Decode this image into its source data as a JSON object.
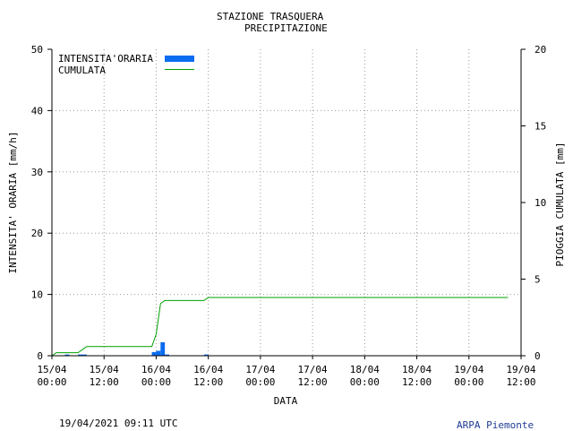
{
  "chart_data": {
    "type": "bar+line",
    "title_line1": "STAZIONE TRASQUERA",
    "title_line2": "PRECIPITAZIONE",
    "xlabel": "DATA",
    "ylabel_left": "INTENSITA' ORARIA [mm/h]",
    "ylabel_right": "PIOGGIA CUMULATA [mm]",
    "ylim_left": [
      0,
      50
    ],
    "ylim_right": [
      0,
      20
    ],
    "yticks_left": [
      "0",
      "10",
      "20",
      "30",
      "40",
      "50"
    ],
    "yticks_right": [
      "0",
      "5",
      "10",
      "15",
      "20"
    ],
    "x_ticks": [
      {
        "date": "15/04",
        "time": "00:00"
      },
      {
        "date": "15/04",
        "time": "12:00"
      },
      {
        "date": "16/04",
        "time": "00:00"
      },
      {
        "date": "16/04",
        "time": "12:00"
      },
      {
        "date": "17/04",
        "time": "00:00"
      },
      {
        "date": "17/04",
        "time": "12:00"
      },
      {
        "date": "18/04",
        "time": "00:00"
      },
      {
        "date": "18/04",
        "time": "12:00"
      },
      {
        "date": "19/04",
        "time": "00:00"
      },
      {
        "date": "19/04",
        "time": "12:00"
      }
    ],
    "grid": true,
    "legend": "top-left",
    "series": [
      {
        "name": "INTENSITA'ORARIA",
        "kind": "bar",
        "color": "#0a6cf0",
        "points": [
          {
            "x": "15/04 03:00",
            "y": 0.2
          },
          {
            "x": "15/04 06:00",
            "y": 0.2
          },
          {
            "x": "15/04 07:00",
            "y": 0.2
          },
          {
            "x": "15/04 23:00",
            "y": 0.6
          },
          {
            "x": "16/04 00:00",
            "y": 0.8
          },
          {
            "x": "16/04 01:00",
            "y": 2.2
          },
          {
            "x": "16/04 02:00",
            "y": 0.2
          },
          {
            "x": "16/04 11:00",
            "y": 0.2
          }
        ]
      },
      {
        "name": "CUMULATA",
        "kind": "line",
        "color": "#00a000",
        "points": [
          {
            "x": "15/04 00:00",
            "y": 0.0
          },
          {
            "x": "15/04 01:00",
            "y": 0.2
          },
          {
            "x": "15/04 06:00",
            "y": 0.2
          },
          {
            "x": "15/04 07:00",
            "y": 0.4
          },
          {
            "x": "15/04 08:00",
            "y": 0.6
          },
          {
            "x": "15/04 23:00",
            "y": 0.6
          },
          {
            "x": "16/04 00:00",
            "y": 1.4
          },
          {
            "x": "16/04 01:00",
            "y": 3.4
          },
          {
            "x": "16/04 02:00",
            "y": 3.6
          },
          {
            "x": "16/04 11:00",
            "y": 3.6
          },
          {
            "x": "16/04 12:00",
            "y": 3.8
          },
          {
            "x": "19/04 09:00",
            "y": 3.8
          }
        ]
      }
    ]
  },
  "footer": {
    "timestamp": "19/04/2021 09:11 UTC",
    "agency": "ARPA Piemonte"
  }
}
